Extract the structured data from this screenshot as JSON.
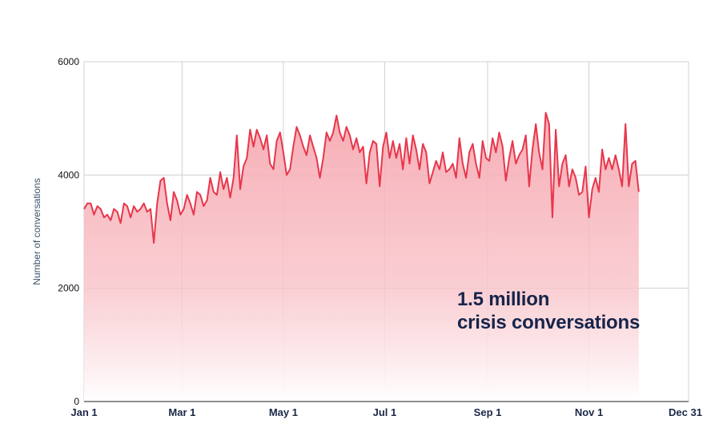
{
  "chart_data": {
    "type": "area",
    "title": "",
    "xlabel": "",
    "ylabel": "Number of conversations",
    "ylim": [
      0,
      6000
    ],
    "yticks": [
      0,
      2000,
      4000,
      6000
    ],
    "xticks": [
      {
        "label": "Jan 1",
        "day": 0
      },
      {
        "label": "Mar 1",
        "day": 59
      },
      {
        "label": "May 1",
        "day": 120
      },
      {
        "label": "Jul 1",
        "day": 181
      },
      {
        "label": "Sep 1",
        "day": 243
      },
      {
        "label": "Nov 1",
        "day": 304
      },
      {
        "label": "Dec 31",
        "day": 364
      }
    ],
    "grid": true,
    "annotation": [
      "1.5 million",
      "crisis conversations"
    ],
    "colors": {
      "line": "#e8364b",
      "fill": "#f6a9b1",
      "grid": "#d0d0d0",
      "axis": "#222222",
      "text": "#17244a"
    },
    "series": [
      {
        "day_step": 2,
        "values": [
          3400,
          3500,
          3500,
          3300,
          3450,
          3400,
          3250,
          3300,
          3200,
          3400,
          3350,
          3150,
          3500,
          3450,
          3250,
          3450,
          3350,
          3400,
          3500,
          3350,
          3400,
          2800,
          3500,
          3900,
          3950,
          3500,
          3200,
          3700,
          3550,
          3300,
          3400,
          3650,
          3500,
          3300,
          3700,
          3650,
          3450,
          3550,
          3950,
          3700,
          3650,
          4050,
          3750,
          3950,
          3600,
          3950,
          4700,
          3750,
          4150,
          4300,
          4800,
          4500,
          4800,
          4650,
          4450,
          4700,
          4200,
          4100,
          4600,
          4750,
          4400,
          4000,
          4100,
          4500,
          4850,
          4700,
          4500,
          4350,
          4700,
          4500,
          4300,
          3950,
          4300,
          4750,
          4600,
          4750,
          5050,
          4750,
          4600,
          4850,
          4700,
          4450,
          4650,
          4400,
          4500,
          3850,
          4400,
          4600,
          4550,
          3800,
          4500,
          4750,
          4300,
          4600,
          4300,
          4550,
          4100,
          4650,
          4200,
          4700,
          4450,
          4100,
          4550,
          4400,
          3850,
          4050,
          4250,
          4100,
          4400,
          4050,
          4100,
          4200,
          3950,
          4650,
          4200,
          3950,
          4400,
          4550,
          4200,
          3950,
          4600,
          4300,
          4250,
          4650,
          4400,
          4750,
          4500,
          3900,
          4300,
          4600,
          4200,
          4350,
          4450,
          4700,
          3800,
          4450,
          4900,
          4400,
          4100,
          5100,
          4900,
          3250,
          4800,
          3800,
          4200,
          4350,
          3800,
          4100,
          3950,
          3650,
          3700,
          4150,
          3250,
          3750,
          3950,
          3700,
          4450,
          4100,
          4300,
          4100,
          4350,
          4100,
          3800,
          4900,
          3800,
          4200,
          4250,
          3700
        ]
      }
    ]
  }
}
